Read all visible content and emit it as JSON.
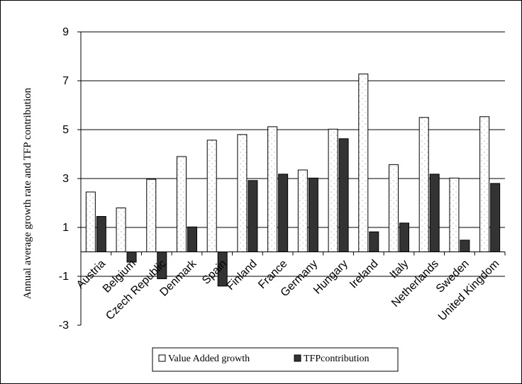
{
  "chart_data": {
    "type": "bar",
    "title": "",
    "xlabel": "",
    "ylabel": "Annual average growth rate and TFP contribution",
    "ylim": [
      -3,
      9
    ],
    "yticks": [
      -3,
      -1,
      1,
      3,
      5,
      7,
      9
    ],
    "grid": true,
    "legend_position": "bottom",
    "categories": [
      "Austria",
      "Belgium",
      "Czech Republic",
      "Denmark",
      "Spain",
      "Finland",
      "France",
      "Germany",
      "Hungary",
      "Ireland",
      "Italy",
      "Netherlands",
      "Sweden",
      "United Kingdom"
    ],
    "series": [
      {
        "name": "Value Added growth",
        "color": "#ffffff",
        "pattern": "dotted",
        "values": [
          2.45,
          1.8,
          2.97,
          3.9,
          4.57,
          4.8,
          5.12,
          3.35,
          5.02,
          7.28,
          3.57,
          5.5,
          3.02,
          5.53
        ]
      },
      {
        "name": "TFPcontribution",
        "color": "#333333",
        "values": [
          1.45,
          -0.42,
          -1.1,
          1.02,
          -1.4,
          2.92,
          3.18,
          3.02,
          4.63,
          0.82,
          1.18,
          3.18,
          0.48,
          2.8
        ]
      }
    ]
  }
}
